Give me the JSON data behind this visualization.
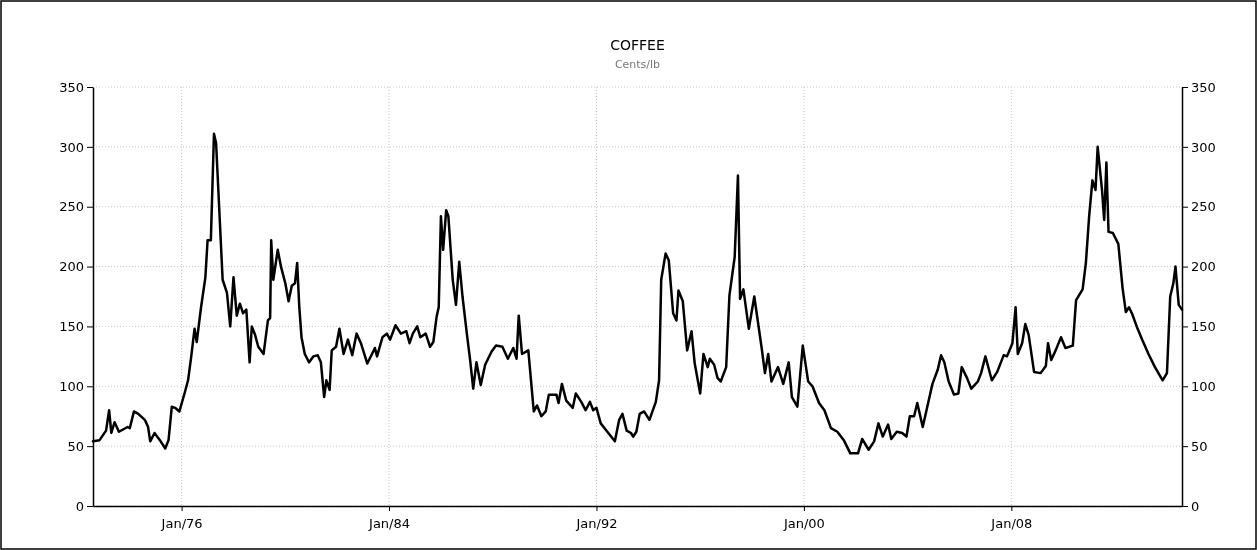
{
  "chart_data": {
    "type": "line",
    "title": "COFFEE",
    "subtitle": "Cents/lb",
    "xlim": [
      "1972-08-01",
      "2014-08-01"
    ],
    "xticks": [
      {
        "value": "1976-01-01",
        "label": "Jan/76"
      },
      {
        "value": "1984-01-01",
        "label": "Jan/84"
      },
      {
        "value": "1992-01-01",
        "label": "Jan/92"
      },
      {
        "value": "2000-01-01",
        "label": "Jan/00"
      },
      {
        "value": "2008-01-01",
        "label": "Jan/08"
      }
    ],
    "ylim": [
      0,
      350
    ],
    "yticks": [
      0,
      50,
      100,
      150,
      200,
      250,
      300,
      350
    ],
    "y2lim": [
      0,
      350
    ],
    "y2ticks": [
      0,
      50,
      100,
      150,
      200,
      250,
      300,
      350
    ],
    "grid": true,
    "line_style": "solid",
    "marker": "none",
    "series": [
      {
        "color": "#000000",
        "x": [
          "1972-08-01",
          "1972-11-01",
          "1973-02-01",
          "1973-03-16",
          "1973-04-16",
          "1973-06-01",
          "1973-08-01",
          "1973-12-01",
          "1974-01-01",
          "1974-03-01",
          "1974-05-01",
          "1974-08-01",
          "1974-09-16",
          "1974-10-16",
          "1974-12-16",
          "1975-03-01",
          "1975-05-16",
          "1975-07-01",
          "1975-08-16",
          "1975-10-01",
          "1975-12-01",
          "1976-02-16",
          "1976-04-01",
          "1976-05-16",
          "1976-07-01",
          "1976-08-01",
          "1976-10-01",
          "1976-12-01",
          "1977-01-01",
          "1977-02-16",
          "1977-04-01",
          "1977-05-01",
          "1977-08-01",
          "1977-10-01",
          "1977-11-16",
          "1978-01-01",
          "1978-02-16",
          "1978-04-01",
          "1978-05-16",
          "1978-07-01",
          "1978-08-16",
          "1978-09-16",
          "1978-11-01",
          "1978-12-16",
          "1979-03-01",
          "1979-05-01",
          "1979-06-01",
          "1979-06-16",
          "1979-07-16",
          "1979-09-16",
          "1979-11-01",
          "1980-01-01",
          "1980-02-16",
          "1980-04-01",
          "1980-05-16",
          "1980-06-16",
          "1980-07-16",
          "1980-08-16",
          "1980-10-01",
          "1980-12-01",
          "1981-02-01",
          "1981-04-01",
          "1981-05-16",
          "1981-07-01",
          "1981-08-01",
          "1981-09-16",
          "1981-10-16",
          "1981-12-16",
          "1982-02-01",
          "1982-04-01",
          "1982-06-01",
          "1982-08-01",
          "1982-10-01",
          "1982-12-01",
          "1983-03-01",
          "1983-06-16",
          "1983-07-16",
          "1983-10-01",
          "1983-12-01",
          "1984-01-16",
          "1984-04-01",
          "1984-06-16",
          "1984-09-01",
          "1984-10-16",
          "1984-12-01",
          "1985-02-01",
          "1985-03-16",
          "1985-06-01",
          "1985-08-01",
          "1985-09-16",
          "1985-11-01",
          "1985-12-01",
          "1986-01-01",
          "1986-02-01",
          "1986-03-16",
          "1986-04-16",
          "1986-06-16",
          "1986-08-01",
          "1986-09-16",
          "1986-11-01",
          "1987-01-01",
          "1987-02-16",
          "1987-04-01",
          "1987-05-16",
          "1987-07-16",
          "1987-09-16",
          "1987-12-16",
          "1988-02-16",
          "1988-05-16",
          "1988-08-01",
          "1988-10-16",
          "1988-12-01",
          "1989-01-01",
          "1989-02-16",
          "1989-05-16",
          "1989-08-01",
          "1989-09-16",
          "1989-11-16",
          "1990-01-16",
          "1990-03-01",
          "1990-06-16",
          "1990-07-16",
          "1990-09-01",
          "1990-11-01",
          "1991-02-01",
          "1991-03-16",
          "1991-06-01",
          "1991-08-01",
          "1991-10-01",
          "1991-11-16",
          "1992-01-01",
          "1992-03-01",
          "1992-06-16",
          "1992-09-16",
          "1992-11-16",
          "1993-01-01",
          "1993-03-01",
          "1993-05-01",
          "1993-06-01",
          "1993-07-16",
          "1993-09-01",
          "1993-11-01",
          "1994-01-16",
          "1994-04-16",
          "1994-06-01",
          "1994-07-01",
          "1994-09-01",
          "1994-10-16",
          "1994-12-16",
          "1995-02-01",
          "1995-03-01",
          "1995-05-01",
          "1995-07-01",
          "1995-09-01",
          "1995-10-16",
          "1996-01-01",
          "1996-02-16",
          "1996-04-16",
          "1996-05-16",
          "1996-07-16",
          "1996-09-01",
          "1996-10-16",
          "1997-01-01",
          "1997-02-16",
          "1997-05-01",
          "1997-06-16",
          "1997-07-16",
          "1997-09-01",
          "1997-11-16",
          "1998-02-01",
          "1998-05-16",
          "1998-07-01",
          "1998-08-16",
          "1998-10-01",
          "1999-01-01",
          "1999-03-16",
          "1999-06-01",
          "1999-07-16",
          "1999-10-01",
          "1999-12-16",
          "2000-03-01",
          "2000-05-01",
          "2000-08-01",
          "2000-10-16",
          "2001-01-16",
          "2001-04-16",
          "2001-07-16",
          "2001-10-16",
          "2002-02-01",
          "2002-04-01",
          "2002-07-01",
          "2002-09-16",
          "2002-11-16",
          "2003-01-16",
          "2003-04-01",
          "2003-05-16",
          "2003-08-01",
          "2003-10-16",
          "2003-12-16",
          "2004-02-01",
          "2004-04-01",
          "2004-05-16",
          "2004-08-01",
          "2004-10-01",
          "2004-12-16",
          "2005-03-01",
          "2005-04-16",
          "2005-06-01",
          "2005-08-01",
          "2005-10-16",
          "2005-12-16",
          "2006-02-01",
          "2006-04-16",
          "2006-06-16",
          "2006-09-16",
          "2006-11-01",
          "2007-01-01",
          "2007-04-01",
          "2007-06-16",
          "2007-09-16",
          "2007-11-01",
          "2008-01-16",
          "2008-03-01",
          "2008-04-01",
          "2008-06-01",
          "2008-07-16",
          "2008-09-01",
          "2008-11-16",
          "2009-02-16",
          "2009-05-01",
          "2009-06-01",
          "2009-07-16",
          "2009-09-16",
          "2009-12-01",
          "2010-02-01",
          "2010-05-16",
          "2010-07-01",
          "2010-10-01",
          "2010-11-16",
          "2011-01-01",
          "2011-02-16",
          "2011-04-01",
          "2011-05-01",
          "2011-07-01",
          "2011-08-01",
          "2011-09-01",
          "2011-10-01",
          "2011-12-01",
          "2012-02-16",
          "2012-04-16",
          "2012-06-01",
          "2012-07-16",
          "2012-09-01",
          "2012-11-01",
          "2013-01-16",
          "2013-04-16",
          "2013-07-16",
          "2013-11-01",
          "2014-01-01",
          "2014-02-16",
          "2014-04-01",
          "2014-05-01",
          "2014-06-16",
          "2014-08-01"
        ],
        "values": [
          54,
          55,
          63,
          80,
          61,
          70,
          62,
          66,
          65,
          79,
          77,
          72,
          66,
          54,
          61,
          55,
          48,
          55,
          83,
          82,
          79,
          95,
          105,
          125,
          148,
          137,
          166,
          191,
          222,
          222,
          311,
          303,
          189,
          178,
          150,
          191,
          159,
          169,
          161,
          164,
          120,
          150,
          143,
          133,
          127,
          155,
          157,
          222,
          189,
          214,
          200,
          186,
          171,
          184,
          186,
          203,
          166,
          141,
          127,
          120,
          125,
          126,
          120,
          91,
          105,
          97,
          130,
          133,
          148,
          127,
          139,
          126,
          144,
          136,
          119,
          132,
          125,
          141,
          144,
          139,
          151,
          144,
          146,
          136,
          144,
          150,
          141,
          144,
          133,
          137,
          158,
          166,
          242,
          214,
          247,
          242,
          189,
          168,
          204,
          175,
          144,
          122,
          98,
          120,
          101,
          118,
          129,
          134,
          133,
          123,
          132,
          123,
          159,
          127,
          130,
          79,
          84,
          75,
          79,
          93,
          93,
          86,
          102,
          88,
          82,
          94,
          87,
          80,
          87,
          80,
          82,
          69,
          61,
          54,
          72,
          77,
          63,
          61,
          58,
          62,
          77,
          79,
          72,
          87,
          105,
          189,
          211,
          205,
          161,
          155,
          180,
          171,
          130,
          146,
          119,
          94,
          127,
          116,
          123,
          118,
          107,
          104,
          116,
          176,
          208,
          276,
          173,
          181,
          148,
          175,
          132,
          111,
          127,
          104,
          116,
          102,
          120,
          91,
          83,
          134,
          104,
          100,
          86,
          80,
          65,
          62,
          55,
          44,
          44,
          56,
          47,
          54,
          69,
          58,
          68,
          56,
          62,
          61,
          58,
          75,
          75,
          86,
          66,
          82,
          102,
          114,
          126,
          120,
          104,
          93,
          94,
          116,
          107,
          98,
          104,
          111,
          125,
          105,
          112,
          126,
          125,
          136,
          166,
          127,
          136,
          152,
          143,
          112,
          111,
          117,
          136,
          122,
          130,
          141,
          132,
          134,
          172,
          181,
          203,
          242,
          272,
          264,
          300,
          264,
          239,
          287,
          229,
          228,
          219,
          182,
          162,
          166,
          160,
          150,
          139,
          127,
          116,
          105,
          111,
          175,
          186,
          200,
          168,
          164
        ]
      }
    ]
  }
}
